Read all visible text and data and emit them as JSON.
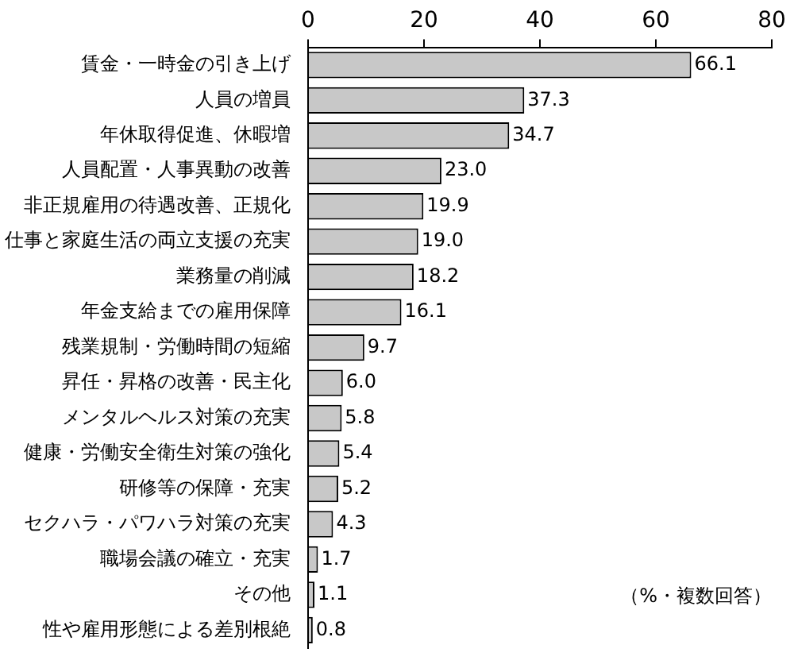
{
  "chart_data": {
    "type": "bar",
    "orientation": "horizontal",
    "categories": [
      "賃金・一時金の引き上げ",
      "人員の増員",
      "年休取得促進、休暇増",
      "人員配置・人事異動の改善",
      "非正規雇用の待遇改善、正規化",
      "仕事と家庭生活の両立支援の充実",
      "業務量の削減",
      "年金支給までの雇用保障",
      "残業規制・労働時間の短縮",
      "昇任・昇格の改善・民主化",
      "メンタルヘルス対策の充実",
      "健康・労働安全衛生対策の強化",
      "研修等の保障・充実",
      "セクハラ・パワハラ対策の充実",
      "職場会議の確立・充実",
      "その他",
      "性や雇用形態による差別根絶"
    ],
    "values": [
      66.1,
      37.3,
      34.7,
      23.0,
      19.9,
      19.0,
      18.2,
      16.1,
      9.7,
      6.0,
      5.8,
      5.4,
      5.2,
      4.3,
      1.7,
      1.1,
      0.8
    ],
    "value_labels": [
      "66.1",
      "37.3",
      "34.7",
      "23.0",
      "19.9",
      "19.0",
      "18.2",
      "16.1",
      "9.7",
      "6.0",
      "5.8",
      "5.4",
      "5.2",
      "4.3",
      "1.7",
      "1.1",
      "0.8"
    ],
    "color": "#c8c8c8",
    "xlim": [
      0,
      80
    ],
    "xticks": [
      0,
      20,
      40,
      60,
      80
    ],
    "grid": false,
    "legend": false,
    "annotations": [
      "（%・複数回答）"
    ]
  }
}
